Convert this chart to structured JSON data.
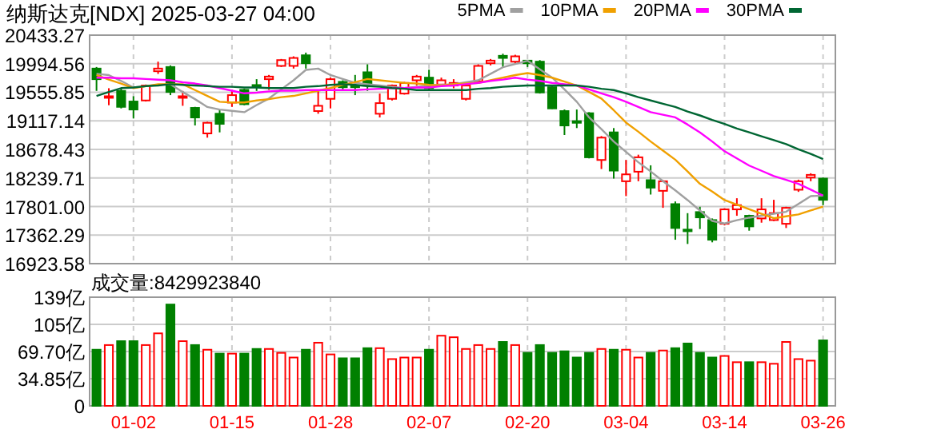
{
  "chart_data": [
    {
      "type": "candlestick",
      "title": "纳斯达克[NDX] 2025-03-27 04:00",
      "categories": [
        null,
        null,
        null,
        null,
        null,
        null,
        null,
        null,
        null,
        null,
        null,
        null,
        null,
        null,
        null,
        null,
        null,
        null,
        null,
        null,
        null,
        null,
        null,
        null,
        null,
        null,
        null,
        null,
        null,
        null,
        null,
        null,
        null,
        null,
        null,
        null,
        null,
        null,
        null,
        null,
        null,
        null,
        null,
        null,
        null,
        null,
        null,
        null,
        null,
        null,
        null,
        null,
        null,
        null,
        null,
        null,
        null,
        null,
        null,
        null
      ],
      "ohlc": [
        [
          19920,
          19944,
          19577,
          19757
        ],
        [
          19480,
          19618,
          19357,
          19495
        ],
        [
          19577,
          19618,
          19308,
          19332
        ],
        [
          19414,
          19495,
          19153,
          19291
        ],
        [
          19430,
          19675,
          19414,
          19659
        ],
        [
          19879,
          20026,
          19838,
          19920
        ],
        [
          19944,
          19969,
          19512,
          19561
        ],
        [
          19480,
          19577,
          19348,
          19495
        ],
        [
          19316,
          19332,
          19046,
          19169
        ],
        [
          18924,
          19103,
          18859,
          19087
        ],
        [
          19226,
          19291,
          18940,
          19071
        ],
        [
          19397,
          19593,
          19332,
          19512
        ],
        [
          19593,
          19610,
          19357,
          19373
        ],
        [
          19667,
          19757,
          19577,
          19650
        ],
        [
          19757,
          19822,
          19593,
          19797
        ],
        [
          19961,
          20067,
          19944,
          20050
        ],
        [
          19961,
          20108,
          19920,
          20083
        ],
        [
          20124,
          20165,
          19920,
          20002
        ],
        [
          19267,
          19593,
          19226,
          19348
        ],
        [
          19455,
          19781,
          19308,
          19757
        ],
        [
          19716,
          19740,
          19593,
          19634
        ],
        [
          19659,
          19822,
          19512,
          19634
        ],
        [
          19863,
          19985,
          19577,
          19659
        ],
        [
          19226,
          19536,
          19169,
          19389
        ],
        [
          19455,
          19675,
          19430,
          19659
        ],
        [
          19536,
          19716,
          19520,
          19699
        ],
        [
          19740,
          19822,
          19659,
          19797
        ],
        [
          19781,
          19903,
          19577,
          19618
        ],
        [
          19675,
          19781,
          19642,
          19740
        ],
        [
          19659,
          19757,
          19618,
          19699
        ],
        [
          19455,
          19675,
          19430,
          19659
        ],
        [
          19724,
          19985,
          19699,
          19961
        ],
        [
          20002,
          20067,
          19969,
          20042
        ],
        [
          20116,
          20148,
          19944,
          20083
        ],
        [
          20026,
          20132,
          19985,
          20108
        ],
        [
          20042,
          20050,
          19944,
          20002
        ],
        [
          20026,
          20050,
          19536,
          19553
        ],
        [
          19634,
          19650,
          19300,
          19308
        ],
        [
          19267,
          19291,
          18899,
          19046
        ],
        [
          19112,
          19291,
          19006,
          19087
        ],
        [
          19234,
          19250,
          18540,
          18557
        ],
        [
          18516,
          18883,
          18377,
          18859
        ],
        [
          18940,
          19006,
          18230,
          18353
        ],
        [
          18189,
          18516,
          17961,
          18295
        ],
        [
          18336,
          18597,
          18189,
          18557
        ],
        [
          18206,
          18434,
          17985,
          18091
        ],
        [
          18042,
          18206,
          17781,
          18189
        ],
        [
          17838,
          17879,
          17291,
          17471
        ],
        [
          17446,
          17699,
          17226,
          17430
        ],
        [
          17716,
          17797,
          17455,
          17634
        ],
        [
          17593,
          17618,
          17251,
          17291
        ],
        [
          17536,
          17773,
          17511,
          17757
        ],
        [
          17757,
          17928,
          17659,
          17822
        ],
        [
          17659,
          17675,
          17430,
          17496
        ],
        [
          17618,
          17928,
          17553,
          17757
        ],
        [
          17593,
          17904,
          17577,
          17700
        ],
        [
          17536,
          17797,
          17471,
          17781
        ],
        [
          18059,
          18214,
          18026,
          18189
        ],
        [
          18246,
          18312,
          18189,
          18287
        ],
        [
          18230,
          18246,
          17822,
          17904
        ]
      ],
      "series": [
        {
          "name": "5PMA",
          "type": "line",
          "color": "#a0a0a0",
          "values": [
            19840,
            19820,
            19730,
            19630,
            19650,
            19670,
            19680,
            19560,
            19450,
            19330,
            19290,
            19270,
            19250,
            19360,
            19460,
            19600,
            19740,
            19900,
            19920,
            19820,
            19760,
            19700,
            19680,
            19660,
            19640,
            19620,
            19640,
            19660,
            19670,
            19680,
            19710,
            19740,
            19840,
            19940,
            19990,
            20040,
            19910,
            19780,
            19600,
            19410,
            19170,
            18990,
            18800,
            18640,
            18480,
            18340,
            18190,
            18050,
            17900,
            17740,
            17580,
            17540,
            17590,
            17630,
            17660,
            17690,
            17720,
            17840,
            17960,
            17970
          ]
        },
        {
          "name": "10PMA",
          "type": "line",
          "color": "#f0a000",
          "values": [
            19820,
            19750,
            19690,
            19620,
            19650,
            19680,
            19680,
            19680,
            19590,
            19500,
            19410,
            19400,
            19400,
            19430,
            19450,
            19480,
            19500,
            19540,
            19580,
            19620,
            19670,
            19710,
            19760,
            19740,
            19720,
            19700,
            19690,
            19670,
            19660,
            19680,
            19690,
            19700,
            19740,
            19780,
            19820,
            19850,
            19820,
            19780,
            19720,
            19660,
            19560,
            19460,
            19280,
            19090,
            18950,
            18800,
            18660,
            18520,
            18340,
            18150,
            18030,
            17900,
            17830,
            17760,
            17690,
            17620,
            17650,
            17680,
            17740,
            17800
          ]
        },
        {
          "name": "20PMA",
          "type": "line",
          "color": "#ff00ff",
          "values": [
            19780,
            19780,
            19770,
            19770,
            19760,
            19750,
            19740,
            19710,
            19690,
            19660,
            19620,
            19580,
            19540,
            19550,
            19570,
            19580,
            19580,
            19590,
            19590,
            19590,
            19590,
            19590,
            19600,
            19610,
            19620,
            19620,
            19630,
            19630,
            19650,
            19660,
            19680,
            19700,
            19730,
            19750,
            19780,
            19750,
            19730,
            19700,
            19680,
            19660,
            19600,
            19540,
            19480,
            19410,
            19330,
            19250,
            19210,
            19170,
            19060,
            18940,
            18800,
            18650,
            18540,
            18430,
            18350,
            18270,
            18210,
            18150,
            18060,
            17970
          ]
        },
        {
          "name": "30PMA",
          "type": "line",
          "color": "#006633",
          "values": [
            19500,
            19560,
            19620,
            19630,
            19650,
            19660,
            19680,
            19670,
            19660,
            19650,
            19640,
            19640,
            19630,
            19630,
            19620,
            19620,
            19620,
            19640,
            19650,
            19670,
            19680,
            19670,
            19650,
            19640,
            19620,
            19610,
            19590,
            19590,
            19590,
            19590,
            19590,
            19610,
            19620,
            19640,
            19650,
            19660,
            19660,
            19660,
            19660,
            19660,
            19640,
            19610,
            19590,
            19540,
            19480,
            19430,
            19380,
            19330,
            19260,
            19200,
            19130,
            19070,
            19000,
            18940,
            18880,
            18820,
            18760,
            18680,
            18610,
            18530
          ]
        }
      ],
      "ylim": [
        16923.58,
        20433.27
      ],
      "yticks": [
        {
          "value": 16923.58,
          "label": "16923.58"
        },
        {
          "value": 17362.29,
          "label": "17362.29"
        },
        {
          "value": 17801,
          "label": "17801.00"
        },
        {
          "value": 18239.71,
          "label": "18239.71"
        },
        {
          "value": 18678.43,
          "label": "18678.43"
        },
        {
          "value": 19117.14,
          "label": "19117.14"
        },
        {
          "value": 19555.85,
          "label": "19555.85"
        },
        {
          "value": 19994.56,
          "label": "19994.56"
        },
        {
          "value": 20433.27,
          "label": "20433.27"
        }
      ],
      "grid": true,
      "legend": "top right",
      "tick_labels": "y"
    },
    {
      "type": "bar",
      "title": "成交量:8429923840",
      "categories": [
        null,
        null,
        null,
        "01-02",
        null,
        null,
        null,
        null,
        null,
        null,
        null,
        "01-15",
        null,
        null,
        null,
        null,
        null,
        null,
        null,
        "01-28",
        null,
        null,
        null,
        null,
        null,
        null,
        null,
        "02-07",
        null,
        null,
        null,
        null,
        null,
        null,
        null,
        "02-20",
        null,
        null,
        null,
        null,
        null,
        null,
        null,
        "03-04",
        null,
        null,
        null,
        null,
        null,
        null,
        null,
        "03-14",
        null,
        null,
        null,
        null,
        null,
        null,
        null,
        "03-26"
      ],
      "values": [
        72,
        78,
        83,
        83,
        78,
        93,
        130,
        83,
        78,
        72,
        67,
        67,
        67,
        73,
        73,
        68,
        62,
        72,
        81,
        66,
        61,
        61,
        74,
        74,
        60,
        62,
        62,
        72,
        90,
        88,
        73,
        78,
        73,
        82,
        78,
        68,
        78,
        68,
        70,
        62,
        68,
        73,
        72,
        72,
        62,
        68,
        71,
        74,
        80,
        68,
        62,
        64,
        56,
        56,
        56,
        54,
        82,
        60,
        58,
        84
      ],
      "colors": [
        "#008000",
        "#ff0000",
        "#008000",
        "#008000",
        "#ff0000",
        "#ff0000",
        "#008000",
        "#ff0000",
        "#008000",
        "#ff0000",
        "#008000",
        "#ff0000",
        "#008000",
        "#008000",
        "#ff0000",
        "#ff0000",
        "#ff0000",
        "#008000",
        "#ff0000",
        "#ff0000",
        "#008000",
        "#008000",
        "#008000",
        "#ff0000",
        "#ff0000",
        "#ff0000",
        "#ff0000",
        "#008000",
        "#ff0000",
        "#ff0000",
        "#ff0000",
        "#ff0000",
        "#ff0000",
        "#008000",
        "#ff0000",
        "#008000",
        "#008000",
        "#008000",
        "#008000",
        "#008000",
        "#008000",
        "#ff0000",
        "#008000",
        "#ff0000",
        "#ff0000",
        "#008000",
        "#ff0000",
        "#008000",
        "#008000",
        "#008000",
        "#008000",
        "#ff0000",
        "#ff0000",
        "#008000",
        "#ff0000",
        "#ff0000",
        "#ff0000",
        "#ff0000",
        "#ff0000",
        "#008000"
      ],
      "ylim": [
        0,
        139.4
      ],
      "yticks": [
        {
          "value": 0,
          "label": "0"
        },
        {
          "value": 34.85,
          "label": "34.85亿"
        },
        {
          "value": 69.7,
          "label": "69.70亿"
        },
        {
          "value": 104.55,
          "label": "105亿"
        },
        {
          "value": 139.4,
          "label": "139亿"
        }
      ],
      "grid": true
    }
  ]
}
